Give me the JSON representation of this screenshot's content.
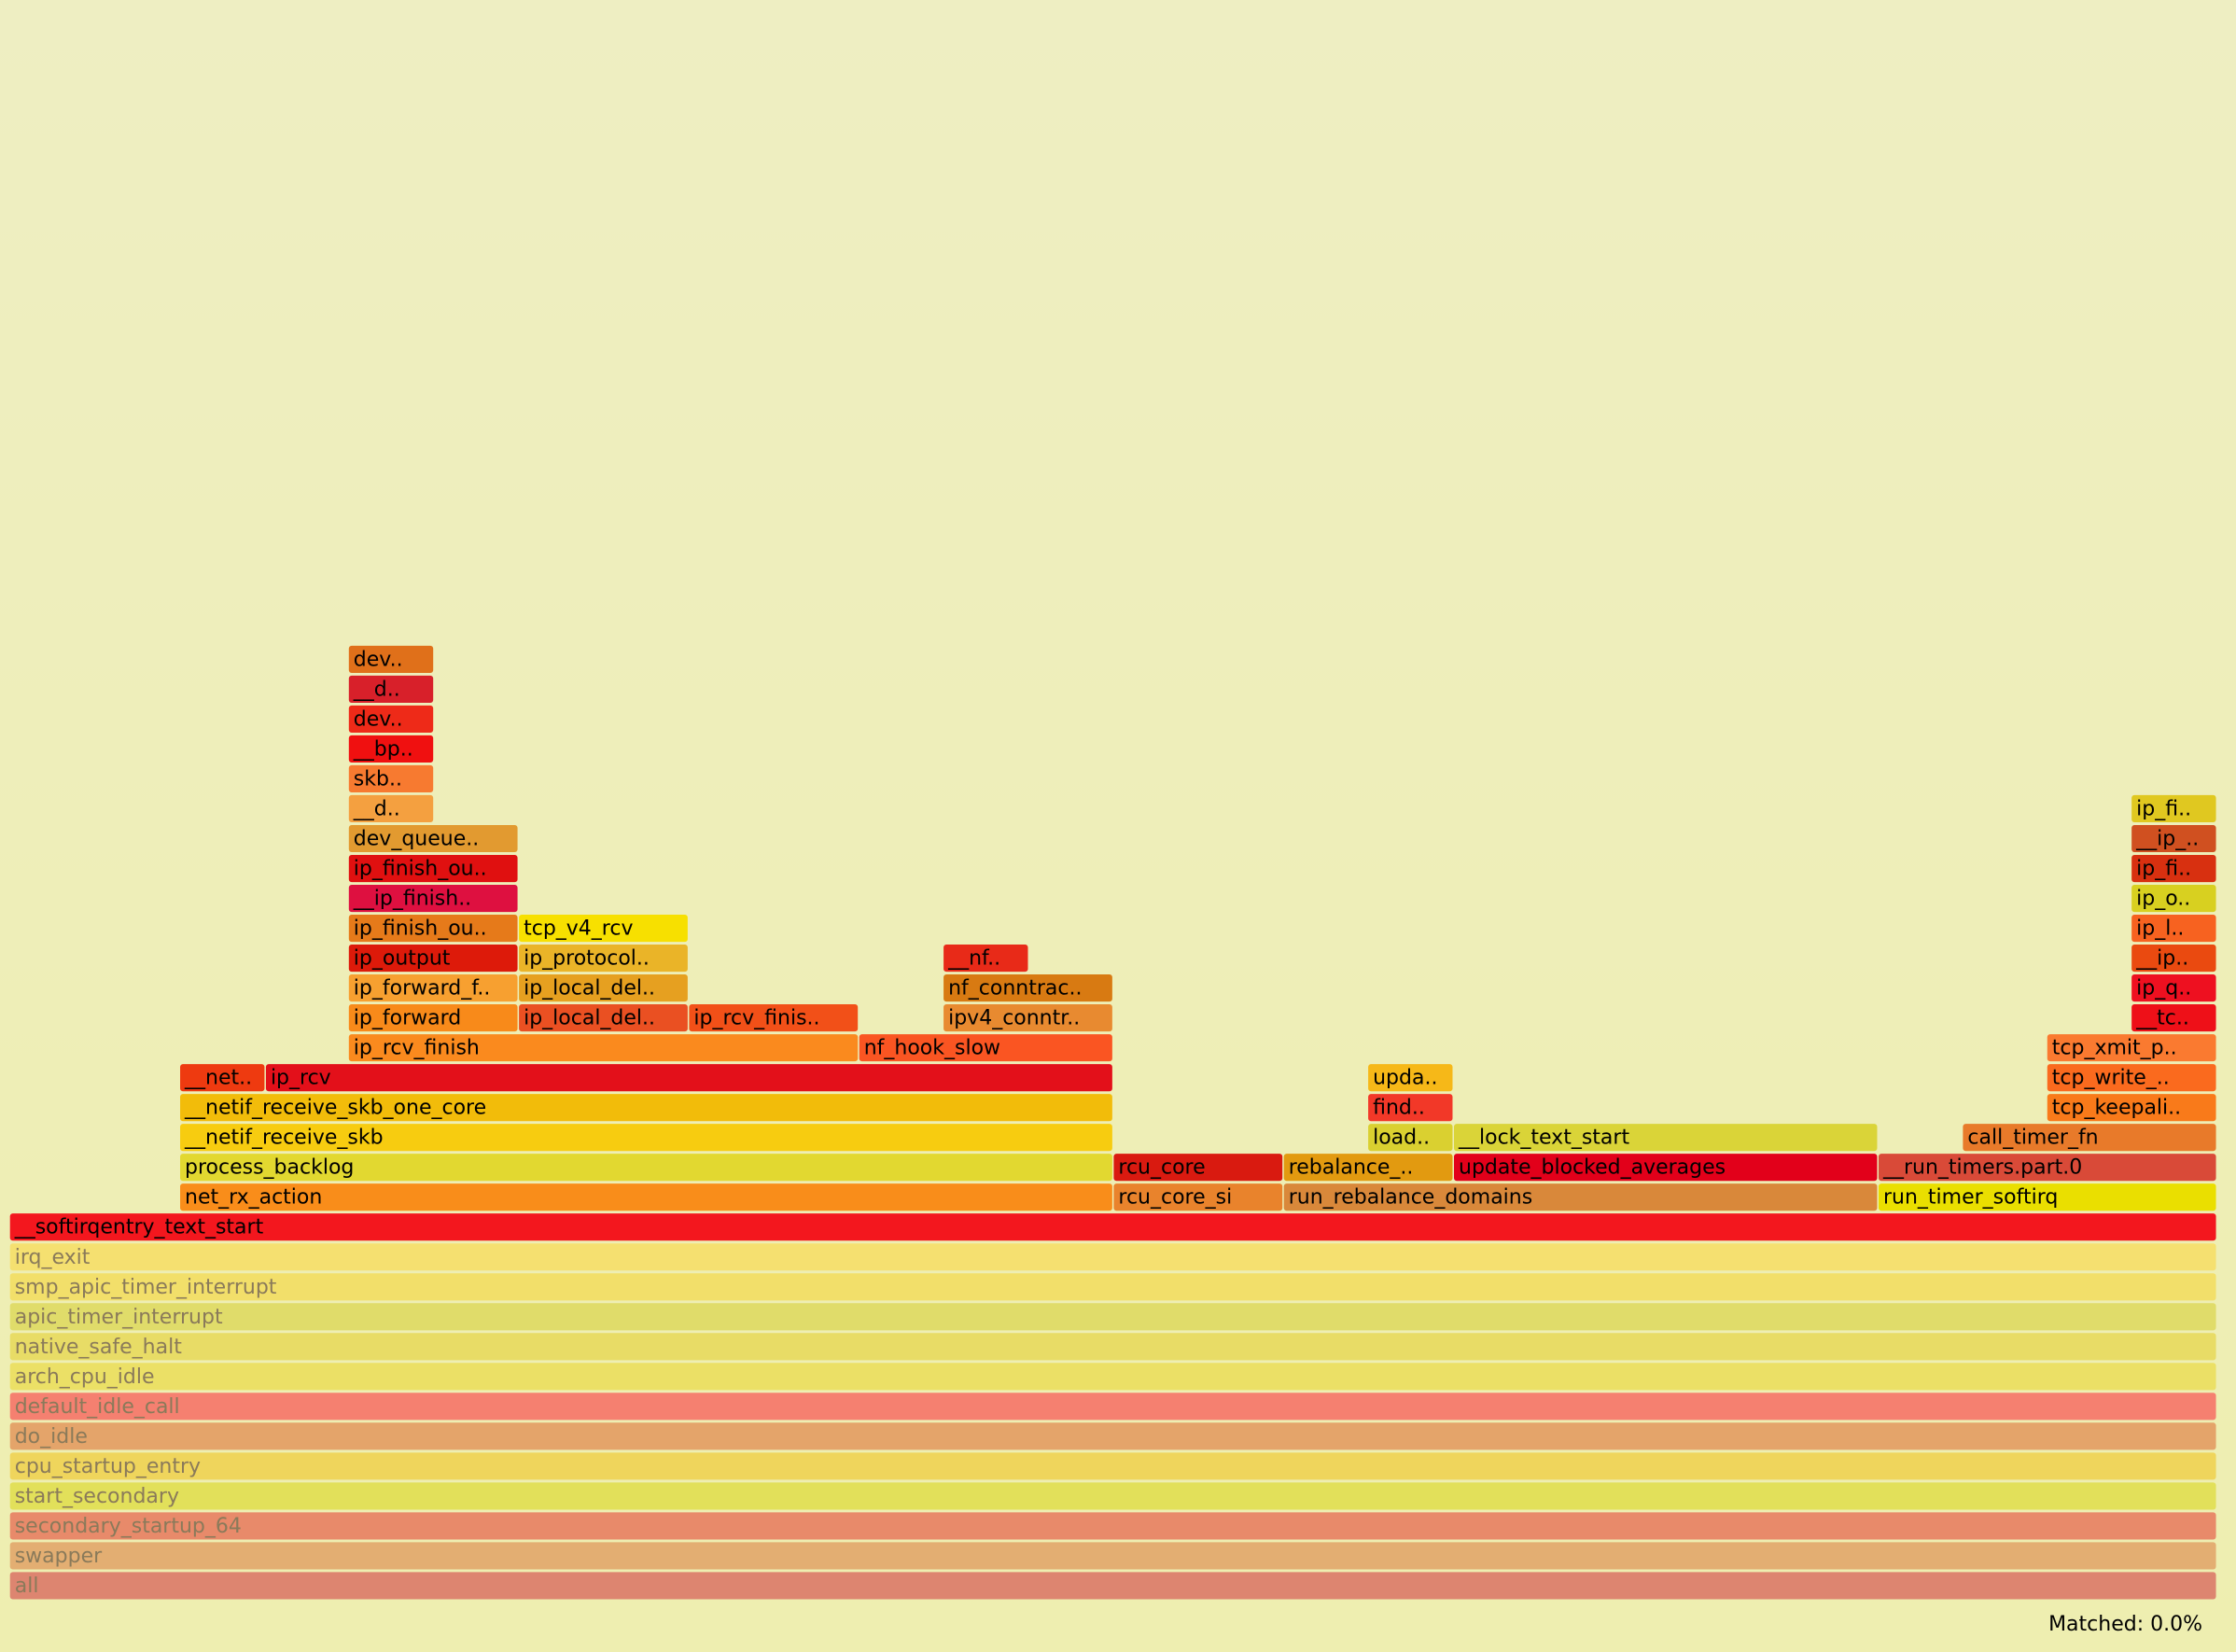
{
  "frames": [
    {
      "label": "all",
      "color": "#dd8570"
    },
    {
      "label": "swapper",
      "color": "#e3ae72"
    },
    {
      "label": "secondary_startup_64",
      "color": "#e88a6a"
    },
    {
      "label": "start_secondary",
      "color": "#e2e05a"
    },
    {
      "label": "cpu_startup_entry",
      "color": "#efd55c"
    },
    {
      "label": "do_idle",
      "color": "#e4a46a"
    },
    {
      "label": "default_idle_call",
      "color": "#f58070"
    },
    {
      "label": "arch_cpu_idle",
      "color": "#ebe066"
    },
    {
      "label": "native_safe_halt",
      "color": "#e8dc66"
    },
    {
      "label": "apic_timer_interrupt",
      "color": "#e0dc6a"
    },
    {
      "label": "smp_apic_timer_interrupt",
      "color": "#f2df6a"
    },
    {
      "label": "irq_exit",
      "color": "#f5e070"
    },
    {
      "label": "__softirqentry_text_start",
      "color": "#f3171e"
    },
    {
      "label": "net_rx_action",
      "color": "#f98d1a"
    },
    {
      "label": "rcu_core_si",
      "color": "#e9832c"
    },
    {
      "label": "run_rebalance_domains",
      "color": "#d9883a"
    },
    {
      "label": "run_timer_softirq",
      "color": "#eadf00"
    },
    {
      "label": "process_backlog",
      "color": "#e2d830"
    },
    {
      "label": "rcu_core",
      "color": "#d91a10"
    },
    {
      "label": "rebalance_..",
      "color": "#e29a10"
    },
    {
      "label": "update_blocked_averages",
      "color": "#e2001a"
    },
    {
      "label": "__run_timers.part.0",
      "color": "#d94a38"
    },
    {
      "label": "__netif_receive_skb",
      "color": "#f7cc10"
    },
    {
      "label": "load..",
      "color": "#dad030"
    },
    {
      "label": "__lock_text_start",
      "color": "#dad438"
    },
    {
      "label": "call_timer_fn",
      "color": "#e87a2a"
    },
    {
      "label": "__netif_receive_skb_one_core",
      "color": "#f2bc0a"
    },
    {
      "label": "find..",
      "color": "#f23828"
    },
    {
      "label": "tcp_keepali..",
      "color": "#f97a1a"
    },
    {
      "label": "__net..",
      "color": "#ee3a10"
    },
    {
      "label": "ip_rcv",
      "color": "#e3101a"
    },
    {
      "label": "upda..",
      "color": "#f6b818"
    },
    {
      "label": "tcp_write_..",
      "color": "#fa6a1e"
    },
    {
      "label": "ip_rcv_finish",
      "color": "#fa8a1e"
    },
    {
      "label": "nf_hook_slow",
      "color": "#fa5522"
    },
    {
      "label": "tcp_xmit_p..",
      "color": "#fa7a30"
    },
    {
      "label": "ip_forward",
      "color": "#f88a1a"
    },
    {
      "label": "ip_local_del..",
      "color": "#ea5022"
    },
    {
      "label": "ip_rcv_finis..",
      "color": "#f25018"
    },
    {
      "label": "ipv4_conntr..",
      "color": "#e88a30"
    },
    {
      "label": "__tc..",
      "color": "#ee1018"
    },
    {
      "label": "ip_forward_f..",
      "color": "#f7a030"
    },
    {
      "label": "ip_local_del..",
      "color": "#e6a020"
    },
    {
      "label": "nf_conntrac..",
      "color": "#d87a12"
    },
    {
      "label": "ip_q..",
      "color": "#ee1020"
    },
    {
      "label": "ip_output",
      "color": "#dd1a0a"
    },
    {
      "label": "ip_protocol..",
      "color": "#eab428"
    },
    {
      "label": "__nf..",
      "color": "#e82a18"
    },
    {
      "label": "__ip..",
      "color": "#ea4a10"
    },
    {
      "label": "ip_finish_ou..",
      "color": "#e67a1a"
    },
    {
      "label": "tcp_v4_rcv",
      "color": "#f7e000"
    },
    {
      "label": "ip_l..",
      "color": "#f76220"
    },
    {
      "label": "__ip_finish..",
      "color": "#de1040"
    },
    {
      "label": "ip_o..",
      "color": "#d8d020"
    },
    {
      "label": "ip_finish_ou..",
      "color": "#e01010"
    },
    {
      "label": "ip_fi..",
      "color": "#d83010"
    },
    {
      "label": "dev_queue..",
      "color": "#e29a30"
    },
    {
      "label": "__ip_..",
      "color": "#d05020"
    },
    {
      "label": "__d..",
      "color": "#f4a040"
    },
    {
      "label": "ip_fi..",
      "color": "#e0c820"
    },
    {
      "label": "skb..",
      "color": "#f77a30"
    },
    {
      "label": "__bp..",
      "color": "#f01010"
    },
    {
      "label": "dev..",
      "color": "#ee2a18"
    },
    {
      "label": "__d..",
      "color": "#d8202a"
    },
    {
      "label": "dev..",
      "color": "#e0701a"
    }
  ],
  "status": "Matched: 0.0%"
}
